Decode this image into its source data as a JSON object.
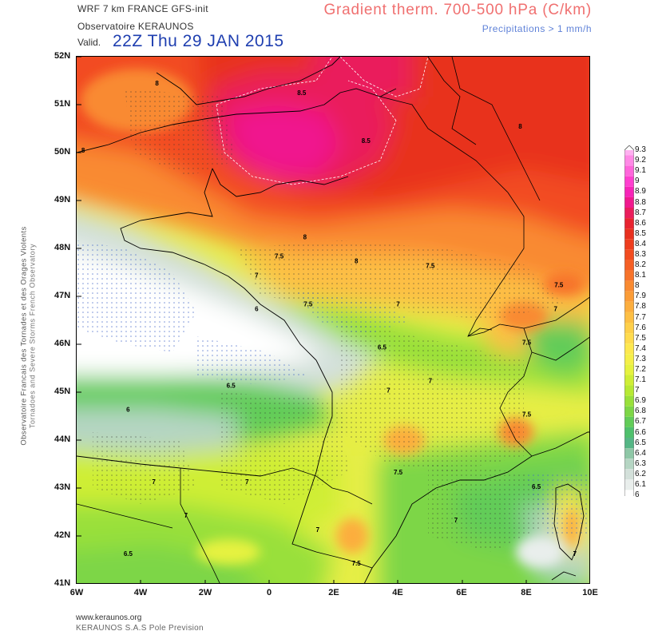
{
  "header": {
    "model": "WRF 7 km FRANCE   GFS-init",
    "observatory": "Observatoire KERAUNOS",
    "valid_prefix": "Valid.",
    "valid_time": "22Z Thu 29 JAN 2015",
    "title": "Gradient therm. 700-500 hPa (C/km)",
    "precip_note": "Precipitations > 1 mm/h"
  },
  "side_credit": {
    "line1": "Observatoire Francais des Tornades et des Orages Violents",
    "line2": "Tornadoes and Severe Storms French Observatory"
  },
  "footer": {
    "url": "www.keraunos.org",
    "company": "KERAUNOS S.A.S Pole Prevision"
  },
  "map": {
    "lat_labels": [
      "52N",
      "51N",
      "50N",
      "49N",
      "48N",
      "47N",
      "46N",
      "45N",
      "44N",
      "43N",
      "42N",
      "41N"
    ],
    "lon_labels": [
      "6W",
      "4W",
      "2W",
      "0",
      "2E",
      "4E",
      "6E",
      "8E",
      "10E"
    ],
    "contour_labels": [
      {
        "text": "8",
        "lon": -3.5,
        "lat": 51.4
      },
      {
        "text": "8.5",
        "lon": 1.0,
        "lat": 51.2
      },
      {
        "text": "8",
        "lon": -5.8,
        "lat": 50.0
      },
      {
        "text": "8.5",
        "lon": 3.0,
        "lat": 50.2
      },
      {
        "text": "8",
        "lon": 7.8,
        "lat": 50.5
      },
      {
        "text": "8",
        "lon": 1.1,
        "lat": 48.2
      },
      {
        "text": "7.5",
        "lon": 0.3,
        "lat": 47.8
      },
      {
        "text": "8",
        "lon": 2.7,
        "lat": 47.7
      },
      {
        "text": "7.5",
        "lon": 5.0,
        "lat": 47.6
      },
      {
        "text": "7",
        "lon": -0.4,
        "lat": 47.4
      },
      {
        "text": "7.5",
        "lon": 9.0,
        "lat": 47.2
      },
      {
        "text": "7.5",
        "lon": 1.2,
        "lat": 46.8
      },
      {
        "text": "7",
        "lon": 4.0,
        "lat": 46.8
      },
      {
        "text": "6",
        "lon": -0.4,
        "lat": 46.7
      },
      {
        "text": "7",
        "lon": 8.9,
        "lat": 46.7
      },
      {
        "text": "7.5",
        "lon": 8.0,
        "lat": 46.0
      },
      {
        "text": "6.5",
        "lon": 3.5,
        "lat": 45.9
      },
      {
        "text": "7",
        "lon": 5.0,
        "lat": 45.2
      },
      {
        "text": "6.5",
        "lon": -1.2,
        "lat": 45.1
      },
      {
        "text": "7",
        "lon": 3.7,
        "lat": 45.0
      },
      {
        "text": "6",
        "lon": -4.4,
        "lat": 44.6
      },
      {
        "text": "7.5",
        "lon": 8.0,
        "lat": 44.5
      },
      {
        "text": "7",
        "lon": -3.6,
        "lat": 43.1
      },
      {
        "text": "7",
        "lon": -0.7,
        "lat": 43.1
      },
      {
        "text": "7.5",
        "lon": 4.0,
        "lat": 43.3
      },
      {
        "text": "6.5",
        "lon": 8.3,
        "lat": 43.0
      },
      {
        "text": "7",
        "lon": -2.6,
        "lat": 42.4
      },
      {
        "text": "7",
        "lon": 1.5,
        "lat": 42.1
      },
      {
        "text": "7",
        "lon": 5.8,
        "lat": 42.3
      },
      {
        "text": "6.5",
        "lon": -4.4,
        "lat": 41.6
      },
      {
        "text": "7.5",
        "lon": 2.7,
        "lat": 41.4
      },
      {
        "text": "7",
        "lon": 9.5,
        "lat": 41.6
      }
    ]
  },
  "legend": {
    "values": [
      "9.3",
      "9.2",
      "9.1",
      "9",
      "8.9",
      "8.8",
      "8.7",
      "8.6",
      "8.5",
      "8.4",
      "8.3",
      "8.2",
      "8.1",
      "8",
      "7.9",
      "7.8",
      "7.7",
      "7.6",
      "7.5",
      "7.4",
      "7.3",
      "7.2",
      "7.1",
      "7",
      "6.9",
      "6.8",
      "6.7",
      "6.6",
      "6.5",
      "6.4",
      "6.3",
      "6.2",
      "6.1",
      "6"
    ],
    "colors": [
      "#ffb0f0",
      "#ff8ae6",
      "#ff66db",
      "#ff3fcf",
      "#f724b8",
      "#f0198e",
      "#ea1d5c",
      "#e82330",
      "#e8301f",
      "#ee3d1e",
      "#f24c20",
      "#f55f24",
      "#f7732a",
      "#f98a31",
      "#fb9c37",
      "#fcae3e",
      "#fdbf44",
      "#fecf4a",
      "#ffdb4e",
      "#fde84e",
      "#f5ef48",
      "#e6f23f",
      "#cfee36",
      "#b7e934",
      "#99e03a",
      "#7dd646",
      "#62cc58",
      "#4fc06c",
      "#55b685",
      "#8ec7a6",
      "#b5d5c3",
      "#d3e0da",
      "#e9eeec",
      "#ffffff"
    ]
  }
}
